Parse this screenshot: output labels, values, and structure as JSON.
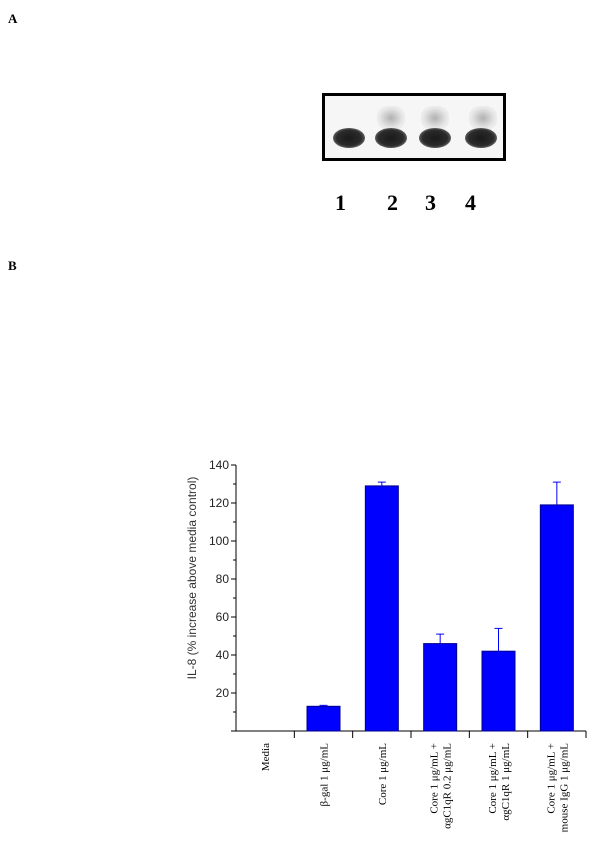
{
  "panel_a": {
    "label": "A",
    "lanes": [
      "1",
      "2",
      "3",
      "4"
    ]
  },
  "panel_b": {
    "label": "B"
  },
  "chart_data": {
    "type": "bar",
    "categories": [
      [
        "Media"
      ],
      [
        "β-gal 1 μg/mL"
      ],
      [
        "Core  1 μg/mL"
      ],
      [
        "Core 1 μg/mL +",
        "αgC1qR 0.2 μg/mL"
      ],
      [
        "Core 1 μg/mL +",
        "αgC1qR 1 μg/mL"
      ],
      [
        "Core 1 μg/mL +",
        "mouse IgG 1 μg/mL"
      ]
    ],
    "values": [
      0,
      13,
      129,
      46,
      42,
      119
    ],
    "errors": [
      0,
      0.5,
      2,
      5,
      12,
      12
    ],
    "ylabel": "IL-8 (% increase above media control)",
    "xlabel": "",
    "title": "",
    "ylim": [
      0,
      140
    ],
    "yticks": [
      20,
      40,
      60,
      80,
      100,
      120,
      140
    ],
    "bar_color": "#0000ff",
    "grid": false
  }
}
